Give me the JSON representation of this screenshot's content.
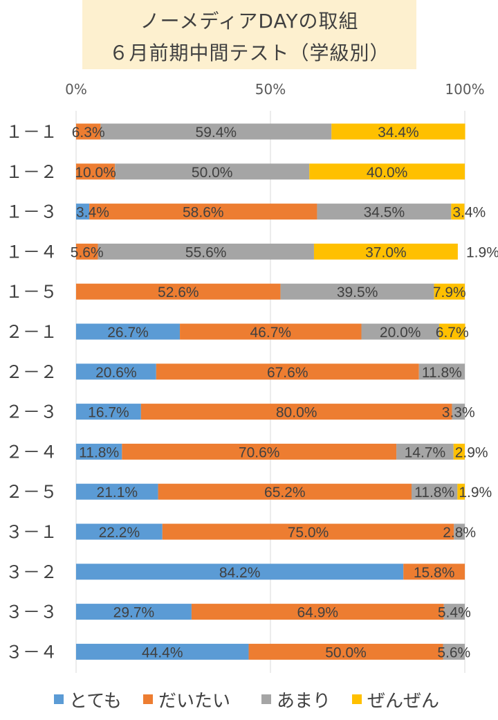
{
  "title": {
    "line1": "ノーメディアDAYの取組",
    "line2": "６月前期中間テスト（学級別）"
  },
  "chart_data": {
    "type": "bar",
    "orientation": "horizontal",
    "stacked": true,
    "normalized_percent": true,
    "x_ticks": [
      "0%",
      "50%",
      "100%"
    ],
    "xlim": [
      0,
      100
    ],
    "grid": true,
    "legend_position": "bottom",
    "categories": [
      "１－１",
      "１－２",
      "１－３",
      "１－４",
      "１－５",
      "２－１",
      "２－２",
      "２－３",
      "２－４",
      "２－５",
      "３－１",
      "３－２",
      "３－３",
      "３－４"
    ],
    "series": [
      {
        "name": "とても",
        "color": "#5b9bd5",
        "values": [
          0,
          0,
          3.4,
          0,
          0,
          26.7,
          20.6,
          16.7,
          11.8,
          21.1,
          22.2,
          84.2,
          29.7,
          44.4
        ],
        "labels": [
          "",
          "",
          "3.4%",
          "",
          "",
          "26.7%",
          "20.6%",
          "16.7%",
          "11.8%",
          "21.1%",
          "22.2%",
          "84.2%",
          "29.7%",
          "44.4%"
        ]
      },
      {
        "name": "だいたい",
        "color": "#ed7d31",
        "values": [
          6.3,
          10.0,
          58.6,
          5.6,
          52.6,
          46.7,
          67.6,
          80.0,
          70.6,
          65.2,
          75.0,
          15.8,
          64.9,
          50.0
        ],
        "labels": [
          "6.3%",
          "10.0%",
          "58.6%",
          "5.6%",
          "52.6%",
          "46.7%",
          "67.6%",
          "80.0%",
          "70.6%",
          "65.2%",
          "75.0%",
          "15.8%",
          "64.9%",
          "50.0%"
        ]
      },
      {
        "name": "あまり",
        "color": "#a5a5a5",
        "values": [
          59.4,
          50.0,
          34.5,
          55.6,
          39.5,
          20.0,
          11.8,
          3.3,
          14.7,
          11.8,
          2.8,
          0,
          5.4,
          5.6
        ],
        "labels": [
          "59.4%",
          "50.0%",
          "34.5%",
          "55.6%",
          "39.5%",
          "20.0%",
          "11.8%",
          "3.3%",
          "14.7%",
          "11.8%",
          "2.8%",
          "",
          "5.4%",
          "5.6%"
        ]
      },
      {
        "name": "ぜんぜん",
        "color": "#ffc000",
        "values": [
          34.4,
          40.0,
          3.4,
          37.0,
          7.9,
          6.7,
          0,
          0,
          2.9,
          1.9,
          0,
          0,
          0,
          0
        ],
        "labels": [
          "34.4%",
          "40.0%",
          "3.4%",
          "37.0%",
          "7.9%",
          "6.7%",
          "",
          "",
          "2.9%",
          "1.9%",
          "",
          "",
          "",
          ""
        ]
      }
    ],
    "extra_labels": [
      "",
      "",
      "",
      "1.9%",
      "",
      "",
      "",
      "",
      "",
      "",
      "",
      "",
      "",
      ""
    ]
  }
}
